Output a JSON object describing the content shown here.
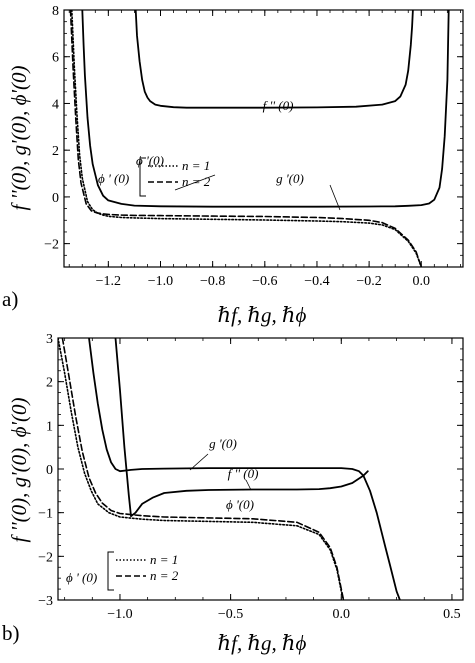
{
  "chart_data": [
    {
      "panel": "a)",
      "type": "line",
      "xlabel": "ℏf, ℏg, ℏϕ",
      "ylabel": "f ''(0), g'(0), ϕ'(0)",
      "xlim": [
        -1.37,
        0.16
      ],
      "ylim": [
        -3,
        8
      ],
      "xticks": [
        -1.2,
        -1.0,
        -0.8,
        -0.6,
        -0.4,
        -0.2,
        0.0
      ],
      "xtick_labels": [
        "−1.2",
        "−1.0",
        "−0.8",
        "−0.6",
        "−0.4",
        "−0.2",
        "0.0"
      ],
      "yticks": [
        -2,
        0,
        2,
        4,
        6,
        8
      ],
      "ytick_labels": [
        "−2",
        "0",
        "2",
        "4",
        "6",
        "8"
      ],
      "grid": false,
      "series": [
        {
          "name": "f '' (0)",
          "style": "solid",
          "color": "#000000",
          "x": [
            -1.095,
            -1.09,
            -1.08,
            -1.07,
            -1.06,
            -1.05,
            -1.04,
            -1.02,
            -1.0,
            -0.95,
            -0.9,
            -0.8,
            -0.6,
            -0.4,
            -0.25,
            -0.15,
            -0.1,
            -0.08,
            -0.06,
            -0.05,
            -0.04,
            -0.035,
            -0.032
          ],
          "y": [
            8.0,
            6.9,
            5.8,
            5.0,
            4.5,
            4.25,
            4.1,
            3.95,
            3.9,
            3.84,
            3.82,
            3.82,
            3.82,
            3.83,
            3.86,
            3.95,
            4.1,
            4.3,
            4.8,
            5.4,
            6.5,
            7.3,
            8.0
          ]
        },
        {
          "name": "g '(0)",
          "style": "solid",
          "color": "#000000",
          "x": [
            -1.3,
            -1.295,
            -1.29,
            -1.28,
            -1.27,
            -1.26,
            -1.24,
            -1.22,
            -1.2,
            -1.15,
            -1.1,
            -1.0,
            -0.8,
            -0.6,
            -0.4,
            -0.2,
            -0.1,
            -0.05,
            0.0,
            0.03,
            0.05,
            0.07,
            0.08,
            0.09,
            0.1,
            0.105
          ],
          "y": [
            8.0,
            6.5,
            5.2,
            3.4,
            2.2,
            1.4,
            0.5,
            0.05,
            -0.15,
            -0.3,
            -0.37,
            -0.4,
            -0.42,
            -0.42,
            -0.42,
            -0.41,
            -0.4,
            -0.38,
            -0.35,
            -0.28,
            -0.12,
            0.4,
            1.2,
            2.6,
            5.0,
            8.0
          ]
        },
        {
          "name": "n = 1",
          "legend_group": "ϕ ' (0)",
          "style": "dotted",
          "color": "#000000",
          "x": [
            -1.34,
            -1.33,
            -1.32,
            -1.31,
            -1.3,
            -1.28,
            -1.26,
            -1.24,
            -1.22,
            -1.2,
            -1.15,
            -1.1,
            -1.0,
            -0.8,
            -0.6,
            -0.4,
            -0.3,
            -0.2,
            -0.15,
            -0.1,
            -0.05,
            -0.02,
            0.0
          ],
          "y": [
            8.0,
            5.5,
            3.5,
            1.8,
            0.8,
            -0.2,
            -0.55,
            -0.7,
            -0.78,
            -0.83,
            -0.88,
            -0.9,
            -0.93,
            -0.96,
            -0.99,
            -1.03,
            -1.06,
            -1.12,
            -1.2,
            -1.4,
            -1.9,
            -2.4,
            -3.0
          ]
        },
        {
          "name": "n = 2",
          "legend_group": "ϕ ' (0)",
          "style": "dashed",
          "color": "#000000",
          "x": [
            -1.345,
            -1.335,
            -1.325,
            -1.315,
            -1.305,
            -1.285,
            -1.265,
            -1.245,
            -1.225,
            -1.2,
            -1.15,
            -1.1,
            -1.0,
            -0.8,
            -0.6,
            -0.4,
            -0.3,
            -0.2,
            -0.15,
            -0.1,
            -0.05,
            -0.02,
            0.0
          ],
          "y": [
            8.0,
            5.5,
            3.4,
            1.6,
            0.6,
            -0.3,
            -0.6,
            -0.68,
            -0.72,
            -0.75,
            -0.78,
            -0.79,
            -0.8,
            -0.82,
            -0.84,
            -0.88,
            -0.93,
            -1.0,
            -1.1,
            -1.35,
            -1.85,
            -2.35,
            -3.0
          ]
        }
      ],
      "annotations": [
        {
          "text": "f '' (0)",
          "x": -0.63,
          "y": 5.0
        },
        {
          "text": "ϕ '(0)",
          "x": -0.93,
          "y": 0.5
        },
        {
          "text": "g '(0)",
          "x": -0.32,
          "y": 0.6
        }
      ],
      "legend": {
        "group_label": "ϕ ' (0)",
        "entries": [
          "n = 1",
          "n = 2"
        ],
        "placement": "center-left"
      }
    },
    {
      "panel": "b)",
      "type": "line",
      "xlabel": "ℏf, ℏg, ℏϕ",
      "ylabel": "f ''(0), g'(0), ϕ'(0)",
      "xlim": [
        -1.28,
        0.55
      ],
      "ylim": [
        -3,
        3
      ],
      "xticks": [
        -1.0,
        -0.5,
        0.0,
        0.5
      ],
      "xtick_labels": [
        "−1.0",
        "−0.5",
        "0.0",
        "0.5"
      ],
      "yticks": [
        -3,
        -2,
        -1,
        0,
        1,
        2,
        3
      ],
      "ytick_labels": [
        "−3",
        "−2",
        "−1",
        "0",
        "1",
        "2",
        "3"
      ],
      "grid": false,
      "series": [
        {
          "name": "g '(0)",
          "style": "solid",
          "color": "#000000",
          "x": [
            -1.14,
            -1.12,
            -1.1,
            -1.08,
            -1.06,
            -1.04,
            -1.02,
            -1.0,
            -0.95,
            -0.9,
            -0.8,
            -0.6,
            -0.4,
            -0.2,
            0.0,
            0.05,
            0.08,
            0.1,
            0.13,
            0.16,
            0.2,
            0.22,
            0.25,
            0.265
          ],
          "y": [
            3.0,
            2.2,
            1.5,
            0.9,
            0.45,
            0.15,
            0.0,
            -0.05,
            -0.02,
            0.0,
            0.01,
            0.02,
            0.02,
            0.02,
            0.02,
            0.0,
            -0.05,
            -0.15,
            -0.5,
            -1.0,
            -1.8,
            -2.2,
            -2.8,
            -3.0
          ]
        },
        {
          "name": "f '' (0)",
          "style": "solid",
          "color": "#000000",
          "x": [
            -1.02,
            -1.0,
            -0.98,
            -0.96,
            -0.95,
            -0.93,
            -0.9,
            -0.85,
            -0.8,
            -0.7,
            -0.6,
            -0.4,
            -0.2,
            -0.1,
            -0.05,
            0.0,
            0.05,
            0.1,
            0.12
          ],
          "y": [
            3.0,
            1.8,
            0.5,
            -0.6,
            -1.08,
            -1.0,
            -0.8,
            -0.65,
            -0.55,
            -0.5,
            -0.48,
            -0.47,
            -0.47,
            -0.46,
            -0.44,
            -0.4,
            -0.32,
            -0.15,
            -0.05
          ]
        },
        {
          "name": "n = 1",
          "legend_group": "ϕ ' (0)",
          "style": "dotted",
          "color": "#000000",
          "x": [
            -1.28,
            -1.25,
            -1.22,
            -1.19,
            -1.16,
            -1.13,
            -1.1,
            -1.05,
            -1.0,
            -0.9,
            -0.8,
            -0.6,
            -0.4,
            -0.2,
            -0.1,
            -0.05,
            -0.02,
            0.0,
            0.01
          ],
          "y": [
            3.0,
            2.2,
            1.3,
            0.5,
            -0.1,
            -0.5,
            -0.8,
            -1.0,
            -1.1,
            -1.15,
            -1.18,
            -1.2,
            -1.22,
            -1.3,
            -1.5,
            -1.85,
            -2.3,
            -2.8,
            -3.0
          ]
        },
        {
          "name": "n = 2",
          "legend_group": "ϕ ' (0)",
          "style": "dashed",
          "color": "#000000",
          "x": [
            -1.26,
            -1.23,
            -1.2,
            -1.17,
            -1.14,
            -1.11,
            -1.08,
            -1.04,
            -1.0,
            -0.9,
            -0.8,
            -0.6,
            -0.4,
            -0.2,
            -0.1,
            -0.05,
            -0.02,
            0.0,
            0.01
          ],
          "y": [
            3.0,
            2.1,
            1.2,
            0.4,
            -0.2,
            -0.55,
            -0.78,
            -0.95,
            -1.02,
            -1.07,
            -1.1,
            -1.12,
            -1.14,
            -1.22,
            -1.45,
            -1.8,
            -2.25,
            -2.75,
            -3.0
          ]
        }
      ],
      "annotations": [
        {
          "text": "g '(0)",
          "x": -0.6,
          "y": 0.7
        },
        {
          "text": "f '' (0)",
          "x": -0.17,
          "y": -0.17
        },
        {
          "text": "ϕ '(0)",
          "x": -0.49,
          "y": -0.7
        }
      ],
      "legend": {
        "group_label": "ϕ ' (0)",
        "entries": [
          "n = 1",
          "n = 2"
        ],
        "placement": "bottom-left"
      }
    }
  ]
}
